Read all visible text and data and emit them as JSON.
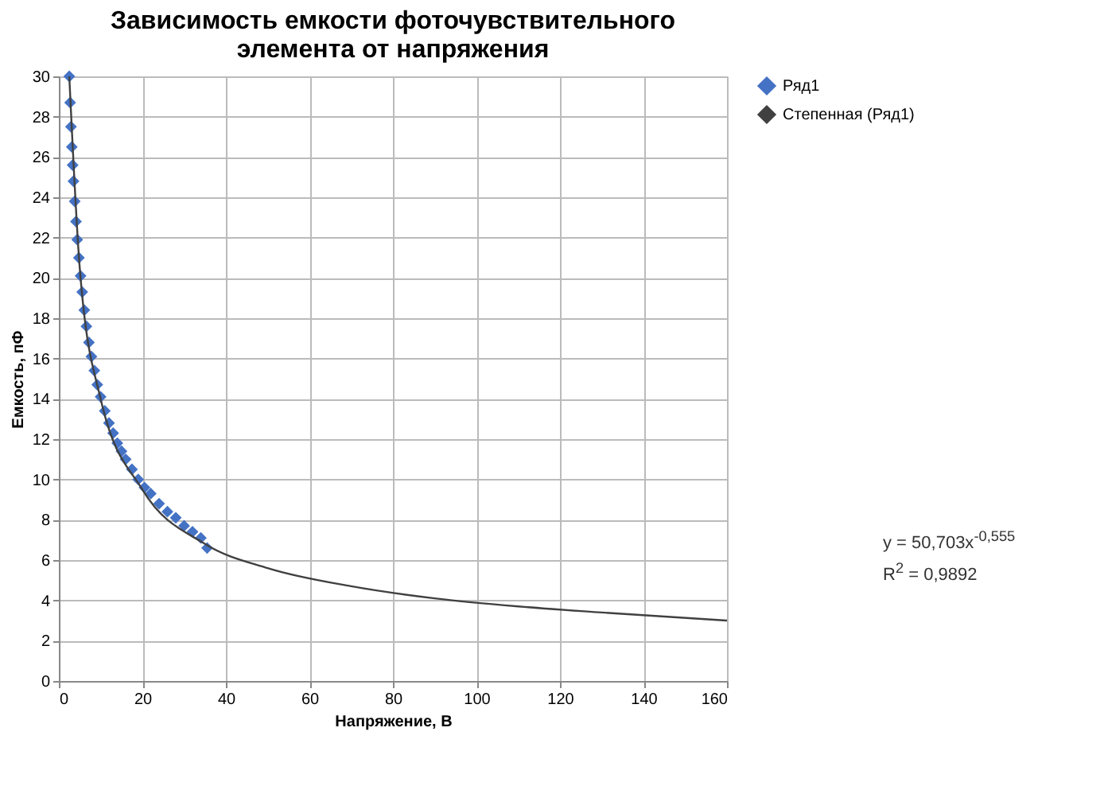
{
  "chart_data": {
    "type": "scatter",
    "title": "Зависимость емкости фоточувствительного элемента от напряжения",
    "xlabel": "Напряжение, В",
    "ylabel": "Емкость, пФ",
    "series": [
      {
        "name": "Ряд1",
        "color": "#4472c4",
        "marker": "diamond",
        "x": [
          2.5,
          2.7,
          2.9,
          3.1,
          3.3,
          3.5,
          3.8,
          4.1,
          4.4,
          4.8,
          5.2,
          5.6,
          6.1,
          6.6,
          7.2,
          7.8,
          8.5,
          9.2,
          10,
          11,
          12,
          13,
          14,
          15,
          16,
          17.5,
          19,
          20.5,
          22,
          24,
          26,
          28,
          30,
          32,
          34,
          35.5
        ],
        "values": [
          30,
          28.7,
          27.5,
          26.5,
          25.6,
          24.8,
          23.8,
          22.8,
          21.9,
          21.0,
          20.1,
          19.3,
          18.4,
          17.6,
          16.8,
          16.1,
          15.4,
          14.7,
          14.1,
          13.4,
          12.8,
          12.3,
          11.8,
          11.4,
          11.0,
          10.5,
          10.0,
          9.6,
          9.3,
          8.8,
          8.4,
          8.1,
          7.7,
          7.4,
          7.1,
          6.6
        ]
      },
      {
        "name": "Степенная (Ряд1)",
        "type": "line",
        "color": "#404040",
        "x": [
          2.5,
          5,
          10,
          20,
          35,
          50,
          70,
          90,
          110,
          130,
          160
        ],
        "values": [
          30,
          20.5,
          14,
          9.5,
          6.8,
          5.6,
          4.7,
          4.1,
          3.7,
          3.4,
          3.0
        ]
      }
    ],
    "xlim": [
      0,
      160
    ],
    "xticks": [
      0,
      20,
      40,
      60,
      80,
      100,
      120,
      140,
      160
    ],
    "ylim": [
      0,
      30
    ],
    "yticks": [
      0,
      2,
      4,
      6,
      8,
      10,
      12,
      14,
      16,
      18,
      20,
      22,
      24,
      26,
      28,
      30
    ],
    "grid": true,
    "legend": "right",
    "annotations": [
      "y = 50,703x$^{-0,555}$",
      "R$^{2}$ = 0,9892"
    ]
  }
}
